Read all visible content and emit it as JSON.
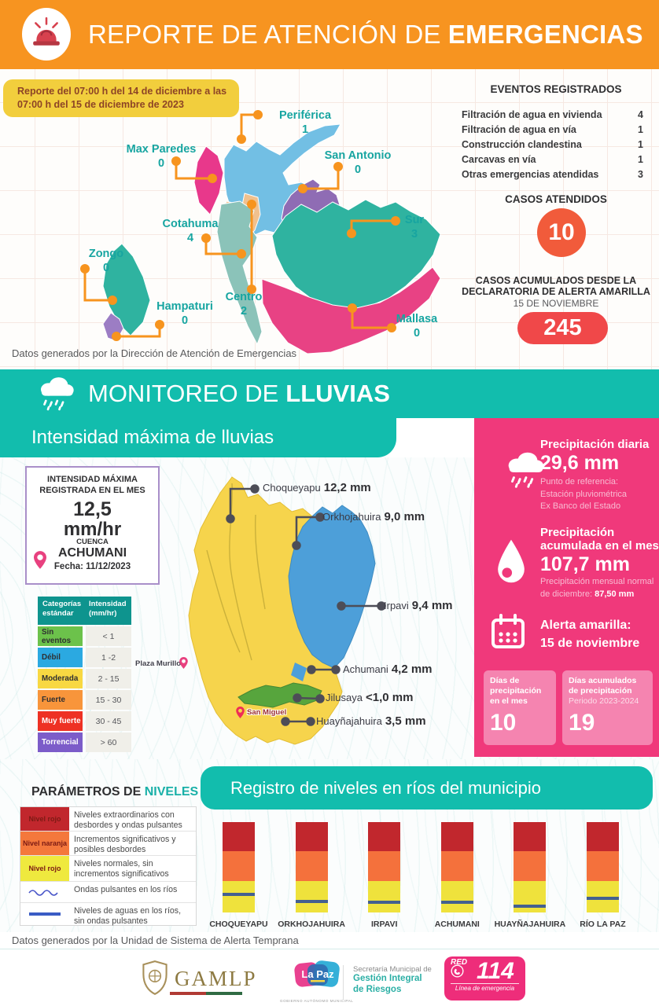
{
  "header": {
    "title_regular": "REPORTE DE ATENCIÓN DE",
    "title_bold": "EMERGENCIAS"
  },
  "report_box": {
    "line1": "Reporte del 07:00 h del 14 de diciembre a las",
    "line2": "07:00 h del 15 de diciembre de 2023"
  },
  "district_map": {
    "labels": [
      {
        "name": "Periférica",
        "value": "1"
      },
      {
        "name": "Max Paredes",
        "value": "0"
      },
      {
        "name": "San Antonio",
        "value": "0"
      },
      {
        "name": "Cotahuma",
        "value": "4"
      },
      {
        "name": "Sur",
        "value": "3"
      },
      {
        "name": "Zongo",
        "value": "0"
      },
      {
        "name": "Centro",
        "value": "2"
      },
      {
        "name": "Hampaturi",
        "value": "0"
      },
      {
        "name": "Mallasa",
        "value": "0"
      }
    ],
    "caption": "Datos generados por la Dirección de Atención de Emergencias"
  },
  "events": {
    "title": "EVENTOS REGISTRADOS",
    "items": [
      {
        "label": "Filtración de agua en vivienda",
        "value": "4"
      },
      {
        "label": "Filtración de agua en vía",
        "value": "1"
      },
      {
        "label": "Construcción clandestina",
        "value": "1"
      },
      {
        "label": "Carcavas en vía",
        "value": "1"
      },
      {
        "label": "Otras emergencias atendidas",
        "value": "3"
      }
    ],
    "attended_title": "CASOS ATENDIDOS",
    "attended_value": "10",
    "accumulated_line1": "CASOS ACUMULADOS DESDE LA",
    "accumulated_line2": "DECLARATORIA DE ALERTA AMARILLA",
    "accumulated_date": "15 DE NOVIEMBRE",
    "accumulated_value": "245"
  },
  "rain_section": {
    "band_title_regular": "MONITOREO DE",
    "band_title_bold": "LLUVIAS",
    "subtitle": "Intensidad máxima de lluvias",
    "intensity_box": {
      "title_line1": "INTENSIDAD MÁXIMA",
      "title_line2": "REGISTRADA EN EL MES",
      "value": "12,5",
      "unit": "mm/hr",
      "basin_label": "CUENCA",
      "basin_name": "ACHUMANI",
      "date": "Fecha: 11/12/2023"
    },
    "categories_table": {
      "header_col1": "Categorías estándar",
      "header_col2": "Intensidad (mm/hr)",
      "rows": [
        {
          "label": "Sin eventos",
          "range": "< 1",
          "color": "#6cc24b"
        },
        {
          "label": "Débil",
          "range": "1 -2",
          "color": "#2ba9e1"
        },
        {
          "label": "Moderada",
          "range": "2 - 15",
          "color": "#f8d842"
        },
        {
          "label": "Fuerte",
          "range": "15 - 30",
          "color": "#f8953b"
        },
        {
          "label": "Muy fuerte",
          "range": "30 - 45",
          "color": "#ee3124"
        },
        {
          "label": "Torrencial",
          "range": "> 60",
          "color": "#7c5cc9"
        }
      ]
    },
    "map_pins": [
      {
        "label": "Plaza Murillo"
      },
      {
        "label": "San Miguel"
      }
    ],
    "river_readings": [
      {
        "name": "Choqueyapu",
        "value": "12,2 mm"
      },
      {
        "name": "Orkhojahuira",
        "value": "9,0 mm"
      },
      {
        "name": "Irpavi",
        "value": "9,4 mm"
      },
      {
        "name": "Achumani",
        "value": "4,2 mm"
      },
      {
        "name": "Jilusaya",
        "value": "<1,0 mm"
      },
      {
        "name": "Huayñajahuira",
        "value": "3,5 mm"
      }
    ],
    "panel": {
      "daily_title": "Precipitación diaria",
      "daily_value": "29,6 mm",
      "reference_line1": "Punto de referencia:",
      "reference_line2": "Estación pluviométrica",
      "reference_line3": "Ex Banco del Estado",
      "monthly_title_line1": "Precipitación",
      "monthly_title_line2": "acumulada en el mes",
      "monthly_value": "107,7 mm",
      "normal_line1": "Precipitación mensual normal",
      "normal_line2": "de diciembre: ",
      "normal_value": "87,50 mm",
      "alert_title": "Alerta amarilla:",
      "alert_date": "15 de noviembre",
      "days_month_label": "Días de precipitación en el mes",
      "days_month_value": "10",
      "days_accum_label": "Días acumulados de precipitación",
      "days_accum_period": "Periodo 2023-2024",
      "days_accum_value": "19"
    }
  },
  "levels_section": {
    "params_title_dark": "PARÁMETROS DE ",
    "params_title_teal": "NIVELES",
    "legend": [
      {
        "swatch": "Nivel rojo",
        "swatch_color": "#c1272d",
        "text": "Niveles extraordinarios con desbordes y ondas pulsantes"
      },
      {
        "swatch": "Nivel naranja",
        "swatch_color": "#f4783c",
        "text": "Incrementos significativos y posibles desbordes"
      },
      {
        "swatch": "Nivel rojo",
        "swatch_color": "#efe93e",
        "text": "Niveles normales, sin incrementos significativos"
      },
      {
        "swatch": "wavy-line",
        "swatch_color": "",
        "text": "Ondas pulsantes en los ríos"
      },
      {
        "swatch": "solid-line",
        "swatch_color": "",
        "text": "Niveles de aguas en los ríos, sin ondas pulsantes"
      }
    ],
    "chart_title": "Registro de niveles en ríos del municipio",
    "caption": "Datos generados por la Unidad de Sistema de Alerta Temprana"
  },
  "chart_data": {
    "type": "bar",
    "title": "Registro de niveles en ríos del municipio",
    "categories": [
      "CHOQUEYAPU",
      "ORKHOJAHUIRA",
      "IRPAVI",
      "ACHUMANI",
      "HUAYÑAJAHUIRA",
      "RÍO LA PAZ"
    ],
    "note": "stacked alert bands (red=extraordinary, orange=significant, yellow=normal) with current water-level line per river",
    "segments_pct": {
      "red": 32,
      "orange": 33,
      "yellow": 35
    },
    "water_level_pct_from_top": [
      78,
      86,
      87,
      87,
      91,
      83
    ],
    "segment_colors": {
      "red": "#c1272d",
      "orange": "#f4713c",
      "yellow": "#efe23c",
      "level_line": "#44608f"
    }
  },
  "footer": {
    "gamlp_text": "GAMLP",
    "lapaz_text": "La Paz",
    "lapaz_sub": "GOBIERNO AUTÓNOMO MUNICIPAL",
    "secretaria_line1": "Secretaría Municipal de",
    "secretaria_line2": "Gestión Integral",
    "secretaria_line3": "de Riesgos",
    "red_label": "RED",
    "red_number": "114",
    "red_sub": "Línea de emergencia"
  }
}
